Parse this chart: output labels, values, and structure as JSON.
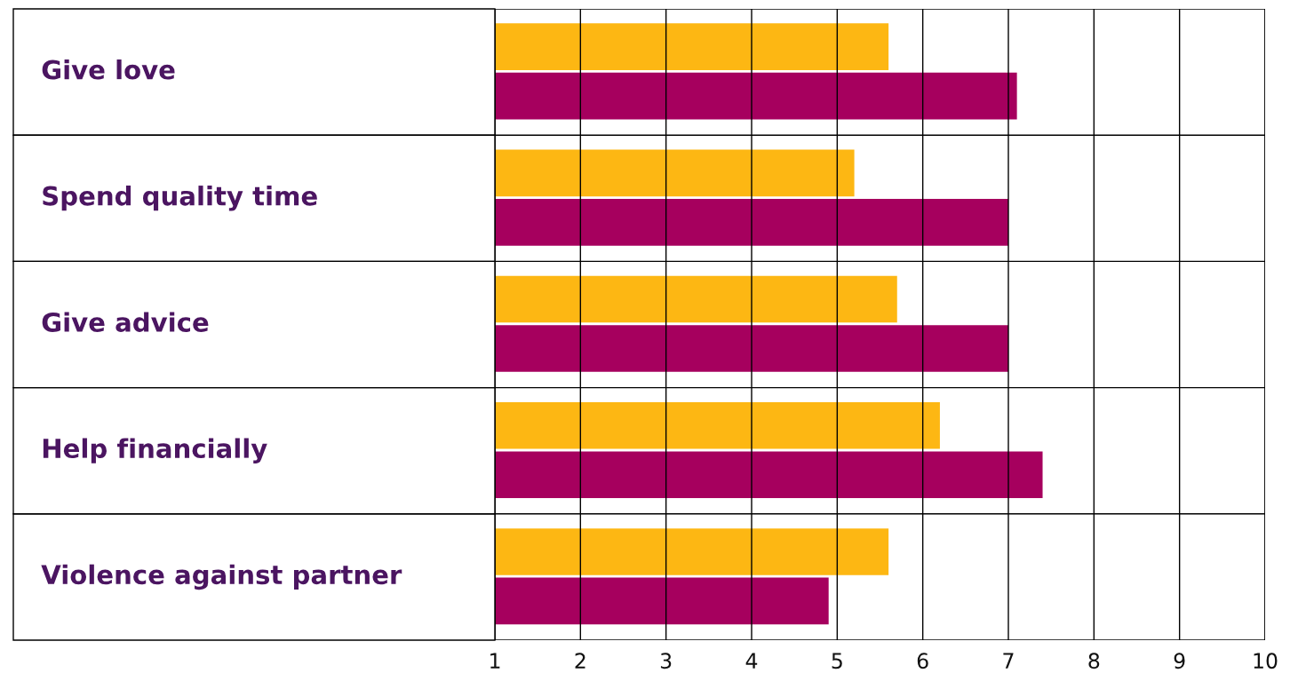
{
  "chart_data": {
    "type": "bar",
    "orientation": "horizontal",
    "categories": [
      "Give love",
      "Spend quality time",
      "Give advice",
      "Help financially",
      "Violence against partner"
    ],
    "series": [
      {
        "color": "#fdb713",
        "values": [
          5.6,
          5.2,
          5.7,
          6.2,
          5.6
        ]
      },
      {
        "color": "#a6005e",
        "values": [
          7.1,
          7.0,
          7.0,
          7.4,
          4.9
        ]
      }
    ],
    "xlim": [
      1,
      10
    ],
    "xticks": [
      1,
      2,
      3,
      4,
      5,
      6,
      7,
      8,
      9,
      10
    ],
    "grid": "x",
    "legend": false
  }
}
